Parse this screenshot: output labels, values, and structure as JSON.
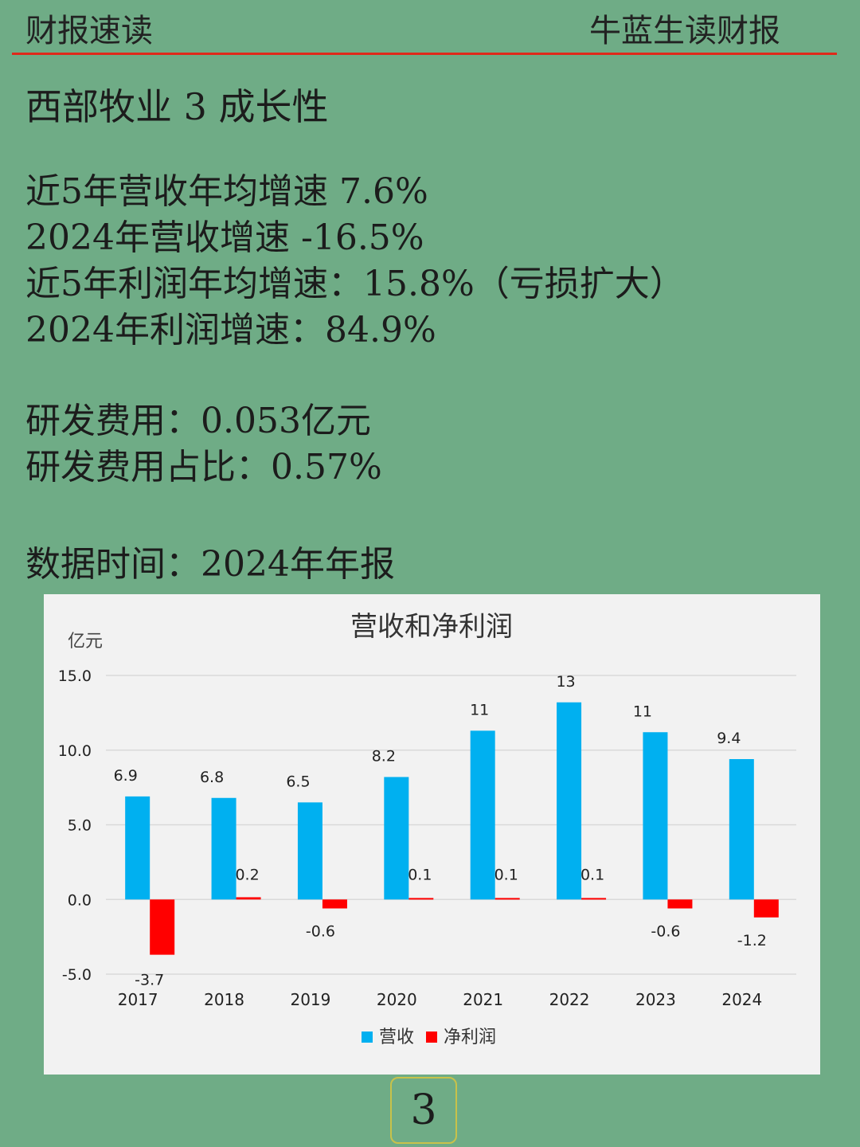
{
  "header": {
    "left_title": "财报速读",
    "right_title": "牛蓝生读财报",
    "rule_color": "#e0291a"
  },
  "section_title": "西部牧业 3 成长性",
  "stats": [
    "近5年营收年均增速 7.6%",
    "2024年营收增速 -16.5%",
    "近5年利润年均增速：15.8%（亏损扩大）",
    "2024年利润增速：84.9%"
  ],
  "rd": [
    "研发费用：0.053亿元",
    "研发费用占比：0.57%"
  ],
  "data_time": "数据时间：2024年年报",
  "page_number": "3",
  "chart_data": {
    "type": "bar",
    "title": "营收和净利润",
    "ylabel": "亿元",
    "xlabel": "",
    "ylim": [
      -5,
      15
    ],
    "yticks": [
      "15.0",
      "10.0",
      "5.0",
      "0.0",
      "-5.0"
    ],
    "ytick_values": [
      15,
      10,
      5,
      0,
      -5
    ],
    "grid": true,
    "legend_position": "bottom",
    "categories": [
      "2017",
      "2018",
      "2019",
      "2020",
      "2021",
      "2022",
      "2023",
      "2024"
    ],
    "series": [
      {
        "name": "营收",
        "color": "#00b0f0",
        "values": [
          6.9,
          6.8,
          6.5,
          8.2,
          11.3,
          13.2,
          11.2,
          9.4
        ],
        "labels": [
          "6.9",
          "6.8",
          "6.5",
          "8.2",
          "11",
          "13",
          "11",
          "9.4"
        ]
      },
      {
        "name": "净利润",
        "color": "#ff0000",
        "values": [
          -3.7,
          0.15,
          -0.6,
          0.1,
          0.1,
          0.1,
          -0.6,
          -1.2
        ],
        "labels": [
          "-3.7",
          "0.2",
          "-0.6",
          "0.1",
          "0.1",
          "0.1",
          "-0.6",
          "-1.2"
        ]
      }
    ]
  }
}
